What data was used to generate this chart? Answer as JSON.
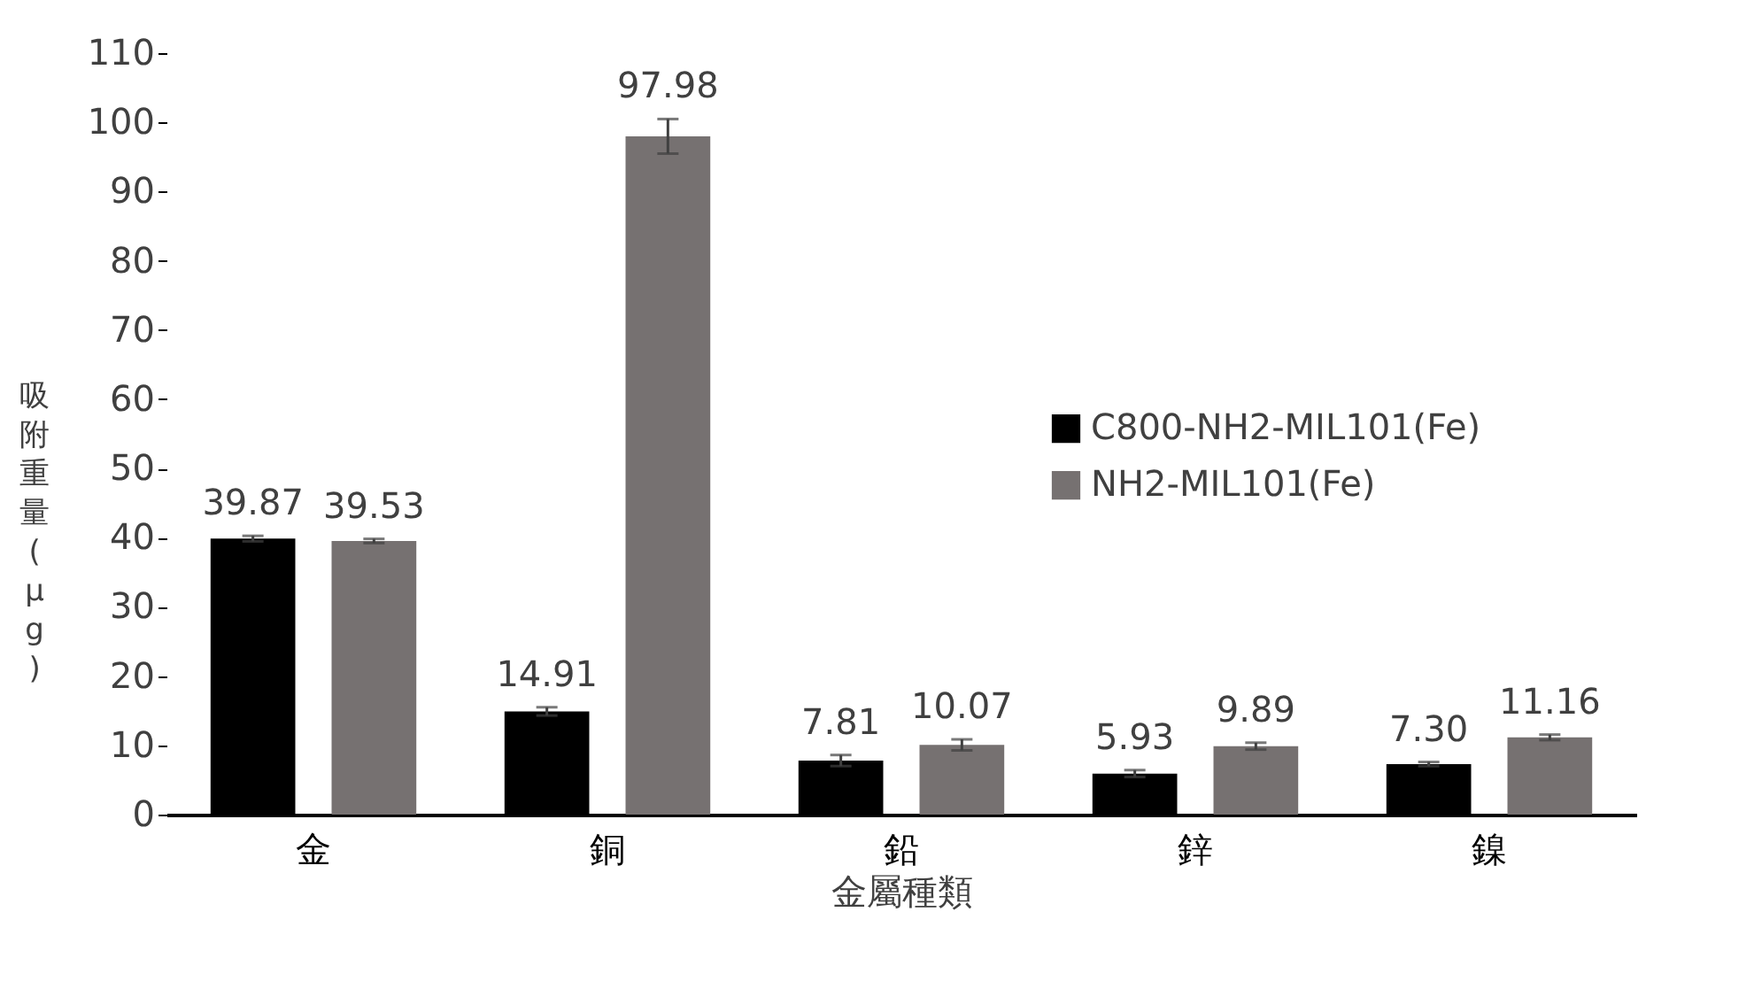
{
  "chart_data": {
    "type": "bar",
    "xlabel": "金屬種類",
    "ylabel": "吸附重量(μg)",
    "categories": [
      "金",
      "銅",
      "鉛",
      "鋅",
      "鎳"
    ],
    "series": [
      {
        "name": "C800-NH2-MIL101(Fe)",
        "color": "#000000",
        "values": [
          39.87,
          14.91,
          7.81,
          5.93,
          7.3
        ],
        "value_labels": [
          "39.87",
          "14.91",
          "7.81",
          "5.93",
          "7.30"
        ],
        "errors": [
          0.4,
          0.6,
          0.8,
          0.5,
          0.3
        ]
      },
      {
        "name": "NH2-MIL101(Fe)",
        "color": "#767171",
        "values": [
          39.53,
          97.98,
          10.07,
          9.89,
          11.16
        ],
        "value_labels": [
          "39.53",
          "97.98",
          "10.07",
          "9.89",
          "11.16"
        ],
        "errors": [
          0.3,
          2.5,
          0.8,
          0.5,
          0.4
        ]
      }
    ],
    "ylim": [
      0,
      110
    ],
    "yticks": [
      0,
      10,
      20,
      30,
      40,
      50,
      60,
      70,
      80,
      90,
      100,
      110
    ],
    "grid": false,
    "legend": "right"
  }
}
